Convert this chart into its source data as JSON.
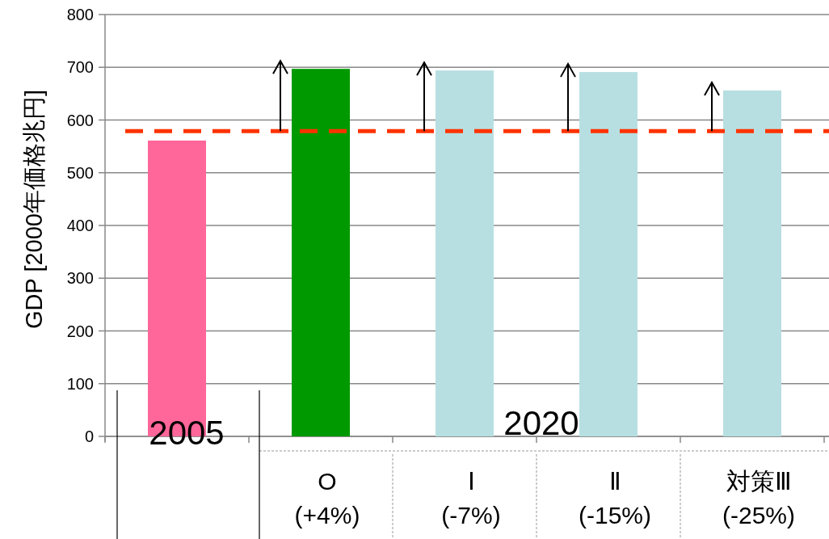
{
  "chart_data": {
    "type": "bar",
    "ylabel": "GDP [2000年価格兆円]",
    "categories": [
      "2005",
      "O\n(+4%)",
      "Ⅰ\n(-7%)",
      "Ⅱ\n(-15%)",
      "対策Ⅲ\n(-25%)"
    ],
    "values": [
      561,
      697,
      694,
      691,
      656
    ],
    "colors": [
      "#ff6699",
      "#009900",
      "#b7dfe2",
      "#b7dfe2",
      "#b7dfe2"
    ],
    "ylim": [
      0,
      800
    ],
    "yticks": [
      0,
      100,
      200,
      300,
      400,
      500,
      600,
      700,
      800
    ],
    "grid": "y",
    "ref_lines": [
      {
        "axis": "y",
        "value": 579,
        "color": "#ff3300",
        "line_style": "dashed"
      }
    ],
    "annotations": [
      "2020"
    ]
  }
}
